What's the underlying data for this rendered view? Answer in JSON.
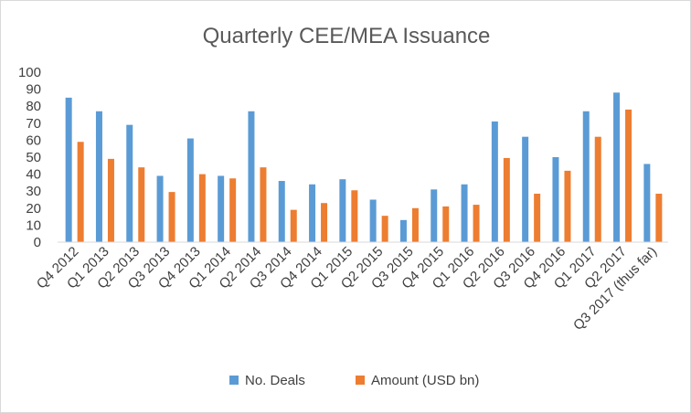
{
  "chart_data": {
    "type": "bar",
    "title": "Quarterly CEE/MEA Issuance",
    "xlabel": "",
    "ylabel": "",
    "ylim": [
      0,
      100
    ],
    "yticks": [
      0,
      10,
      20,
      30,
      40,
      50,
      60,
      70,
      80,
      90,
      100
    ],
    "grid": false,
    "legend_position": "bottom",
    "categories": [
      "Q4 2012",
      "Q1 2013",
      "Q2 2013",
      "Q3 2013",
      "Q4 2013",
      "Q1 2014",
      "Q2 2014",
      "Q3 2014",
      "Q4 2014",
      "Q1 2015",
      "Q2 2015",
      "Q3 2015",
      "Q4 2015",
      "Q1 2016",
      "Q2 2016",
      "Q3 2016",
      "Q4 2016",
      "Q1 2017",
      "Q2 2017",
      "Q3 2017 (thus far)"
    ],
    "series": [
      {
        "name": "No. Deals",
        "color": "#5b9bd5",
        "values": [
          85,
          77,
          69,
          39,
          61,
          39,
          77,
          36,
          34,
          37,
          25,
          13,
          31,
          34,
          71,
          62,
          50,
          77,
          88,
          46
        ]
      },
      {
        "name": "Amount (USD bn)",
        "color": "#ed7d31",
        "values": [
          59,
          49,
          44,
          29.5,
          40,
          37.5,
          44,
          19,
          23,
          30.5,
          15.5,
          20,
          21,
          22,
          49.5,
          28.5,
          42,
          62,
          78,
          28.5
        ]
      }
    ]
  }
}
